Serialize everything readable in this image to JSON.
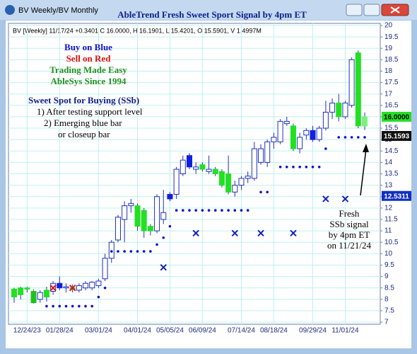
{
  "window_title": "BV Weekly/BV Monthly",
  "chart_data": {
    "type": "candlestick",
    "title": "AbleTrend Fresh Sweet Sport Signal by 4pm ET",
    "header": "BV [Weekly] 11/17/24 +0.3401 C 16.0000, H 16.1901, L 15.4201, O 15.5901, V 1.4997M",
    "annotations": [
      {
        "text": "Buy on Blue",
        "color": "#1010d0"
      },
      {
        "text": "Sell on Red",
        "color": "#e01010"
      },
      {
        "text": "Trading Made Easy",
        "color": "#209020"
      },
      {
        "text": "AbleSys Since 1994",
        "color": "#209020"
      }
    ],
    "notes": [
      "Sweet Spot for Buying (SSb)",
      "1) After testing support level",
      "2) Emerging blue bar",
      "or closeup bar"
    ],
    "signal_note": [
      "Fresh",
      "SSb signal",
      "by 4pm ET",
      "on 11/21/24"
    ],
    "categories": [
      null,
      null,
      "12/24/23",
      null,
      null,
      null,
      null,
      "01/28/24",
      null,
      null,
      null,
      null,
      null,
      "03/01/24",
      null,
      null,
      null,
      null,
      null,
      "04/01/24",
      null,
      null,
      null,
      null,
      "05/05/24",
      null,
      null,
      null,
      null,
      "06/09/24",
      null,
      null,
      null,
      null,
      null,
      "07/14/24",
      null,
      null,
      null,
      null,
      "08/18/24",
      null,
      null,
      null,
      null,
      null,
      "09/29/24",
      null,
      null,
      null,
      null,
      "11/01/24",
      null,
      null,
      null
    ],
    "open": [
      8.1,
      8.2,
      8.45,
      8.35,
      8.0,
      8.1,
      8.35,
      8.7,
      8.5,
      8.5,
      8.4,
      8.5,
      8.5,
      8.6,
      8.9,
      9.8,
      10.6,
      11.5,
      12.1,
      12.1,
      11.9,
      11.0,
      11.0,
      11.5,
      12.4,
      12.6,
      13.5,
      14.3,
      13.8,
      13.9,
      13.6,
      13.7,
      13.6,
      13.5,
      12.7,
      13.0,
      13.3,
      13.3,
      14.6,
      14.0,
      14.9,
      14.9,
      15.8,
      15.6,
      14.6,
      15.2,
      15.4,
      15.0,
      15.5,
      16.2,
      16.6,
      16.0,
      16.5,
      18.8,
      15.5901
    ],
    "high": [
      8.5,
      8.55,
      8.55,
      8.45,
      8.4,
      8.55,
      8.8,
      9.0,
      8.7,
      8.65,
      8.7,
      8.8,
      8.8,
      8.9,
      10.0,
      10.6,
      11.7,
      12.3,
      12.4,
      12.2,
      12.0,
      11.3,
      12.6,
      12.8,
      12.7,
      13.8,
      14.3,
      14.4,
      14.0,
      14.0,
      14.3,
      13.8,
      13.7,
      14.3,
      13.2,
      13.4,
      13.6,
      14.9,
      14.8,
      15.0,
      15.3,
      15.9,
      16.0,
      15.7,
      15.3,
      15.5,
      15.6,
      15.6,
      16.7,
      16.8,
      17.0,
      16.7,
      18.6,
      18.9,
      16.1901
    ],
    "low": [
      7.85,
      8.0,
      8.3,
      7.8,
      7.85,
      7.9,
      8.2,
      8.4,
      8.3,
      8.3,
      8.3,
      8.4,
      8.4,
      8.5,
      8.8,
      9.6,
      10.5,
      10.5,
      11.8,
      11.0,
      10.7,
      10.8,
      10.9,
      11.3,
      12.3,
      12.4,
      13.4,
      13.7,
      13.5,
      13.6,
      13.5,
      13.4,
      12.9,
      12.6,
      12.5,
      12.8,
      13.1,
      13.2,
      13.9,
      13.8,
      14.6,
      14.8,
      15.6,
      14.5,
      14.4,
      15.0,
      14.9,
      14.9,
      15.4,
      15.9,
      15.8,
      15.9,
      16.4,
      15.5,
      15.4201
    ],
    "close": [
      8.45,
      8.5,
      8.5,
      7.85,
      8.3,
      8.4,
      8.7,
      8.5,
      8.55,
      8.45,
      8.6,
      8.7,
      8.75,
      8.8,
      9.8,
      10.5,
      11.6,
      12.1,
      12.2,
      11.2,
      11.0,
      11.2,
      12.5,
      11.8,
      12.6,
      13.7,
      14.1,
      13.8,
      13.7,
      13.7,
      13.7,
      13.5,
      13.0,
      12.7,
      13.0,
      13.3,
      13.4,
      14.6,
      14.0,
      14.9,
      15.1,
      15.8,
      15.7,
      14.6,
      15.1,
      15.4,
      15.0,
      15.5,
      16.2,
      16.6,
      16.0,
      16.6,
      18.5,
      15.6,
      16.0
    ],
    "fills": [
      "#22e022",
      "#22e022",
      "#22e022",
      "#22c022",
      "#ffffff",
      "#22e022",
      "#ffffff",
      "#1020e0",
      "#ffffff",
      "#22e022",
      "#ffffff",
      "#ffffff",
      "#ffffff",
      "#ffffff",
      "#ffffff",
      "#ffffff",
      "#ffffff",
      "#ffffff",
      "#ffffff",
      "#22e022",
      "#22e022",
      "#22e022",
      "#ffffff",
      "#ffffff",
      "#1020e0",
      "#ffffff",
      "#ffffff",
      "#1020e0",
      "#ffffff",
      "#22e022",
      "#ffffff",
      "#22e022",
      "#22e022",
      "#22e022",
      "#ffffff",
      "#ffffff",
      "#ffffff",
      "#ffffff",
      "#ffffff",
      "#ffffff",
      "#ffffff",
      "#ffffff",
      "#ffffff",
      "#22e022",
      "#ffffff",
      "#ffffff",
      "#1020e0",
      "#ffffff",
      "#ffffff",
      "#ffffff",
      "#22e022",
      "#ffffff",
      "#ffffff",
      "#22e022",
      "#7cf07c"
    ],
    "stops": [
      null,
      null,
      null,
      null,
      null,
      7.7,
      7.7,
      7.7,
      7.7,
      7.7,
      7.7,
      7.7,
      7.7,
      8.1,
      8.5,
      10.1,
      10.1,
      10.1,
      10.1,
      10.1,
      10.1,
      10.1,
      10.4,
      10.7,
      11.2,
      11.9,
      11.9,
      11.9,
      11.9,
      11.9,
      11.9,
      11.9,
      11.9,
      11.9,
      11.9,
      11.9,
      11.9,
      null,
      12.7,
      12.7,
      null,
      13.8,
      13.8,
      13.8,
      13.8,
      13.8,
      13.8,
      13.8,
      14.6,
      null,
      15.1,
      15.1,
      15.1,
      15.1,
      15.1
    ],
    "stop_color": "#1010d0",
    "xmarks": [
      null,
      null,
      null,
      null,
      null,
      null,
      8.5,
      null,
      null,
      8.5,
      null,
      null,
      null,
      null,
      null,
      null,
      null,
      null,
      null,
      null,
      null,
      null,
      null,
      9.4,
      null,
      null,
      null,
      null,
      10.9,
      null,
      null,
      null,
      null,
      null,
      10.9,
      null,
      null,
      null,
      10.9,
      null,
      null,
      null,
      null,
      10.9,
      null,
      null,
      null,
      null,
      12.4,
      null,
      null,
      12.4,
      null,
      null,
      null
    ],
    "xmark_colors": [
      null,
      null,
      null,
      null,
      null,
      null,
      "#e01010",
      null,
      null,
      "#e01010",
      null,
      null,
      null,
      null,
      null,
      null,
      null,
      null,
      null,
      null,
      null,
      null,
      null,
      "#1020c0",
      null,
      null,
      null,
      null,
      "#1020c0",
      null,
      null,
      null,
      null,
      null,
      "#1020c0",
      null,
      null,
      null,
      "#1020c0",
      null,
      null,
      null,
      null,
      "#1020c0",
      null,
      null,
      null,
      null,
      "#1020c0",
      null,
      null,
      "#1020c0",
      null,
      null,
      null
    ],
    "ylim": [
      7,
      20
    ],
    "yticks": [
      7,
      7.5,
      8,
      8.5,
      9,
      9.5,
      10,
      10.5,
      11,
      11.5,
      12,
      12.5,
      13,
      13.5,
      14,
      14.5,
      15,
      15.5,
      16,
      16.5,
      17,
      17.5,
      18,
      18.5,
      19,
      19.5,
      20
    ],
    "price_tags": [
      {
        "value": 16.0,
        "label": "16.0000",
        "color": "#22e022"
      },
      {
        "value": 15.1593,
        "label": "15.1593",
        "color": "#101010"
      },
      {
        "value": 12.5311,
        "label": "12.5311",
        "color": "#1030c0"
      }
    ],
    "grid": true
  }
}
